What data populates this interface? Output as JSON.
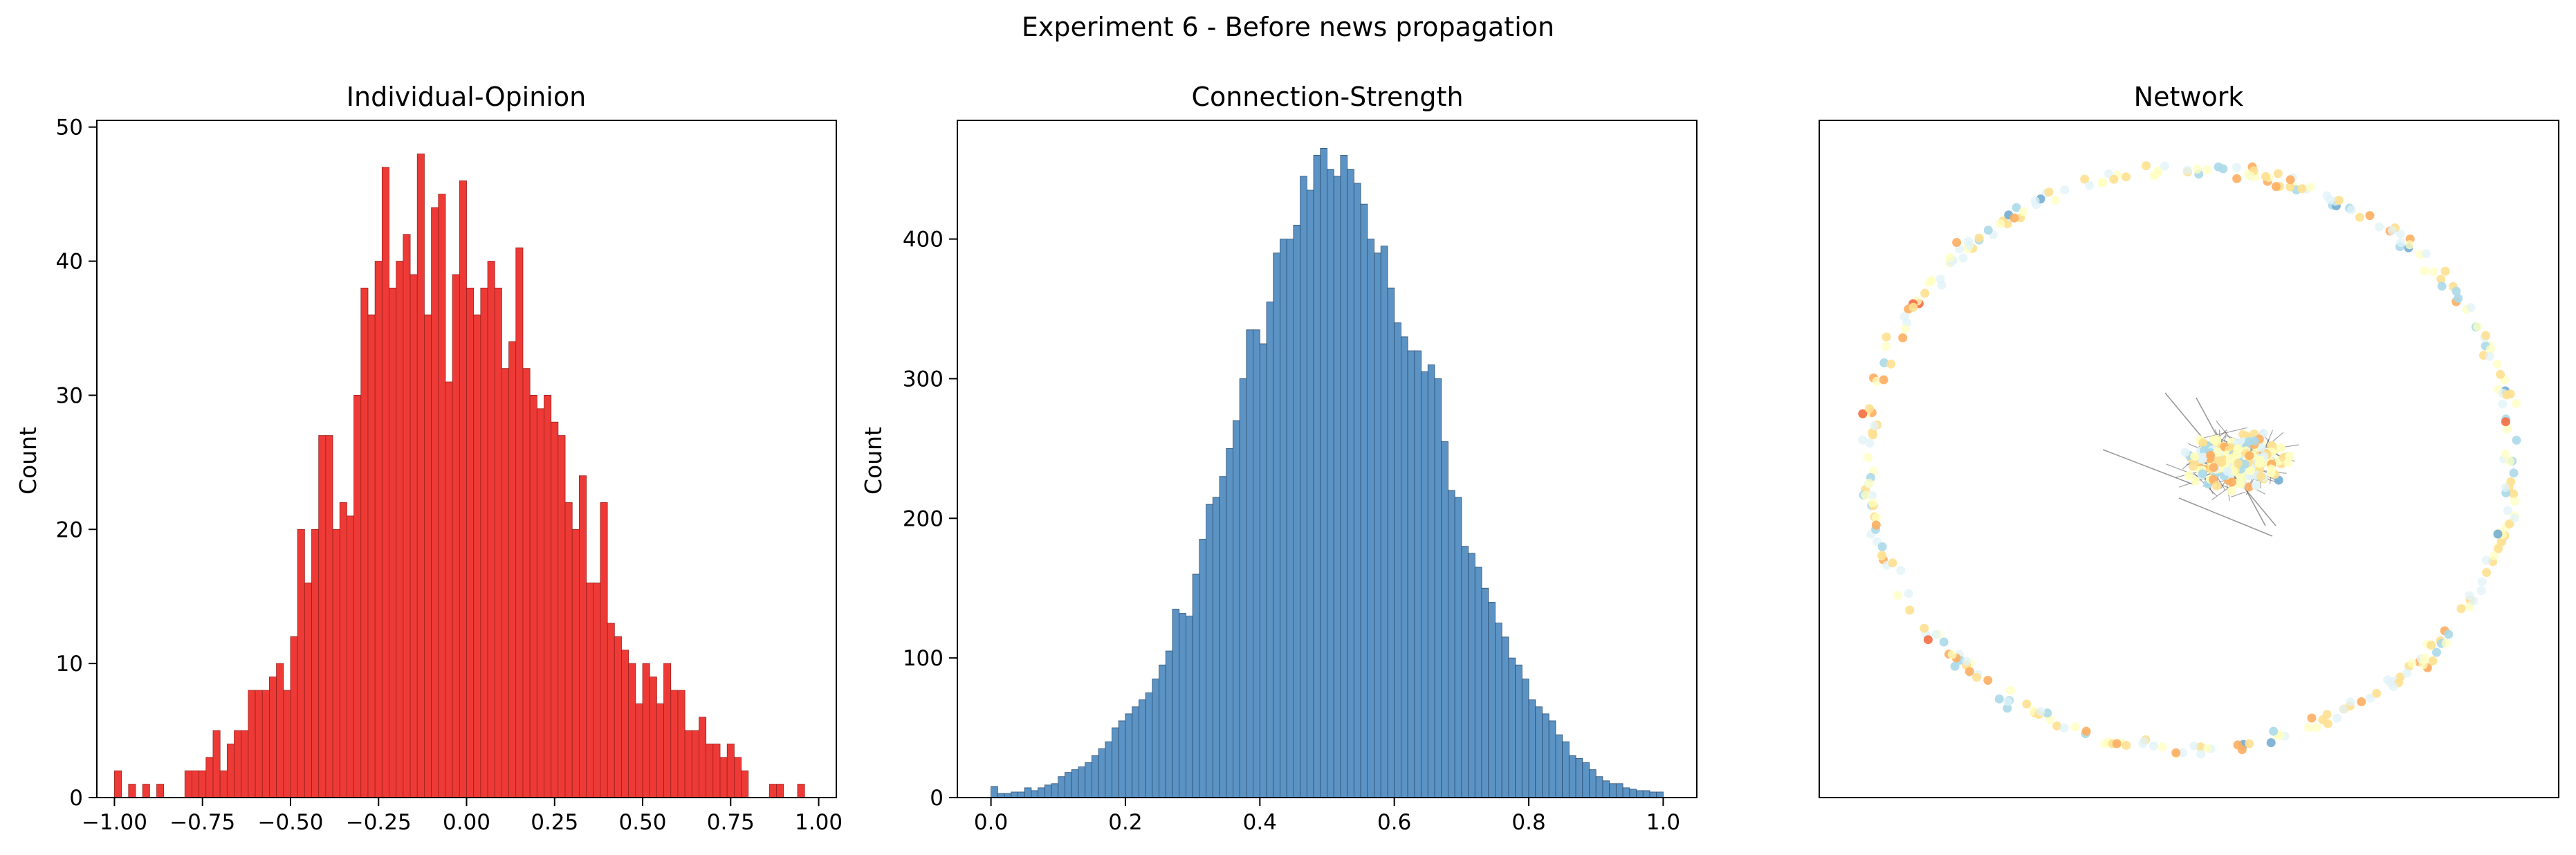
{
  "figure": {
    "suptitle": "Experiment 6 - Before news propagation"
  },
  "chart_data": [
    {
      "type": "bar",
      "title": "Individual-Opinion",
      "xlabel": "",
      "ylabel": "Count",
      "xlim": [
        -1.05,
        1.05
      ],
      "ylim": [
        0,
        50.5
      ],
      "xticks": [
        -1.0,
        -0.75,
        -0.5,
        -0.25,
        0.0,
        0.25,
        0.5,
        0.75,
        1.0
      ],
      "xtick_labels": [
        "−1.00",
        "−0.75",
        "−0.50",
        "−0.25",
        "0.00",
        "0.25",
        "0.50",
        "0.75",
        "1.00"
      ],
      "yticks": [
        0,
        10,
        20,
        30,
        40,
        50
      ],
      "ytick_labels": [
        "0",
        "10",
        "20",
        "30",
        "40",
        "50"
      ],
      "bin_start": -1.0,
      "bin_width": 0.02,
      "values": [
        2,
        0,
        1,
        0,
        1,
        0,
        1,
        0,
        0,
        0,
        2,
        2,
        2,
        3,
        5,
        2,
        4,
        5,
        5,
        8,
        8,
        8,
        9,
        10,
        8,
        12,
        20,
        16,
        20,
        27,
        27,
        20,
        22,
        21,
        30,
        38,
        36,
        40,
        47,
        38,
        40,
        42,
        39,
        48,
        36,
        44,
        45,
        31,
        39,
        46,
        38,
        36,
        38,
        40,
        38,
        32,
        34,
        41,
        32,
        30,
        29,
        30,
        28,
        27,
        22,
        20,
        24,
        16,
        16,
        22,
        13,
        12,
        11,
        10,
        7,
        10,
        9,
        7,
        10,
        8,
        8,
        5,
        5,
        6,
        4,
        4,
        3,
        4,
        3,
        2,
        0,
        0,
        0,
        1,
        1,
        0,
        0,
        1,
        0,
        0
      ]
    },
    {
      "type": "bar",
      "title": "Connection-Strength",
      "xlabel": "",
      "ylabel": "Count",
      "xlim": [
        -0.05,
        1.05
      ],
      "ylim": [
        0,
        485
      ],
      "xticks": [
        0.0,
        0.2,
        0.4,
        0.6,
        0.8,
        1.0
      ],
      "xtick_labels": [
        "0.0",
        "0.2",
        "0.4",
        "0.6",
        "0.8",
        "1.0"
      ],
      "yticks": [
        0,
        100,
        200,
        300,
        400
      ],
      "ytick_labels": [
        "0",
        "100",
        "200",
        "300",
        "400"
      ],
      "bin_start": 0.0,
      "bin_width": 0.01,
      "values": [
        8,
        3,
        3,
        4,
        4,
        7,
        5,
        7,
        9,
        10,
        15,
        18,
        20,
        22,
        25,
        30,
        35,
        40,
        50,
        55,
        60,
        65,
        70,
        75,
        85,
        95,
        105,
        135,
        132,
        130,
        160,
        185,
        210,
        215,
        230,
        250,
        270,
        300,
        335,
        335,
        325,
        355,
        390,
        400,
        400,
        410,
        445,
        435,
        460,
        465,
        450,
        445,
        460,
        450,
        440,
        425,
        400,
        390,
        395,
        365,
        340,
        330,
        320,
        320,
        305,
        310,
        300,
        255,
        220,
        215,
        180,
        175,
        165,
        150,
        140,
        125,
        115,
        100,
        95,
        85,
        70,
        65,
        60,
        55,
        45,
        40,
        30,
        28,
        25,
        20,
        15,
        12,
        10,
        10,
        7,
        6,
        5,
        5,
        4,
        4
      ]
    },
    {
      "type": "scatter",
      "title": "Network",
      "xlabel": "",
      "ylabel": "",
      "axis": "off",
      "node_colormap": [
        "#a50026",
        "#d73027",
        "#f46d43",
        "#fdae61",
        "#fee090",
        "#ffffbf",
        "#e0f3f8",
        "#abd9e9",
        "#74add1",
        "#4575b4",
        "#313695"
      ],
      "edge_color": "#555555"
    }
  ]
}
